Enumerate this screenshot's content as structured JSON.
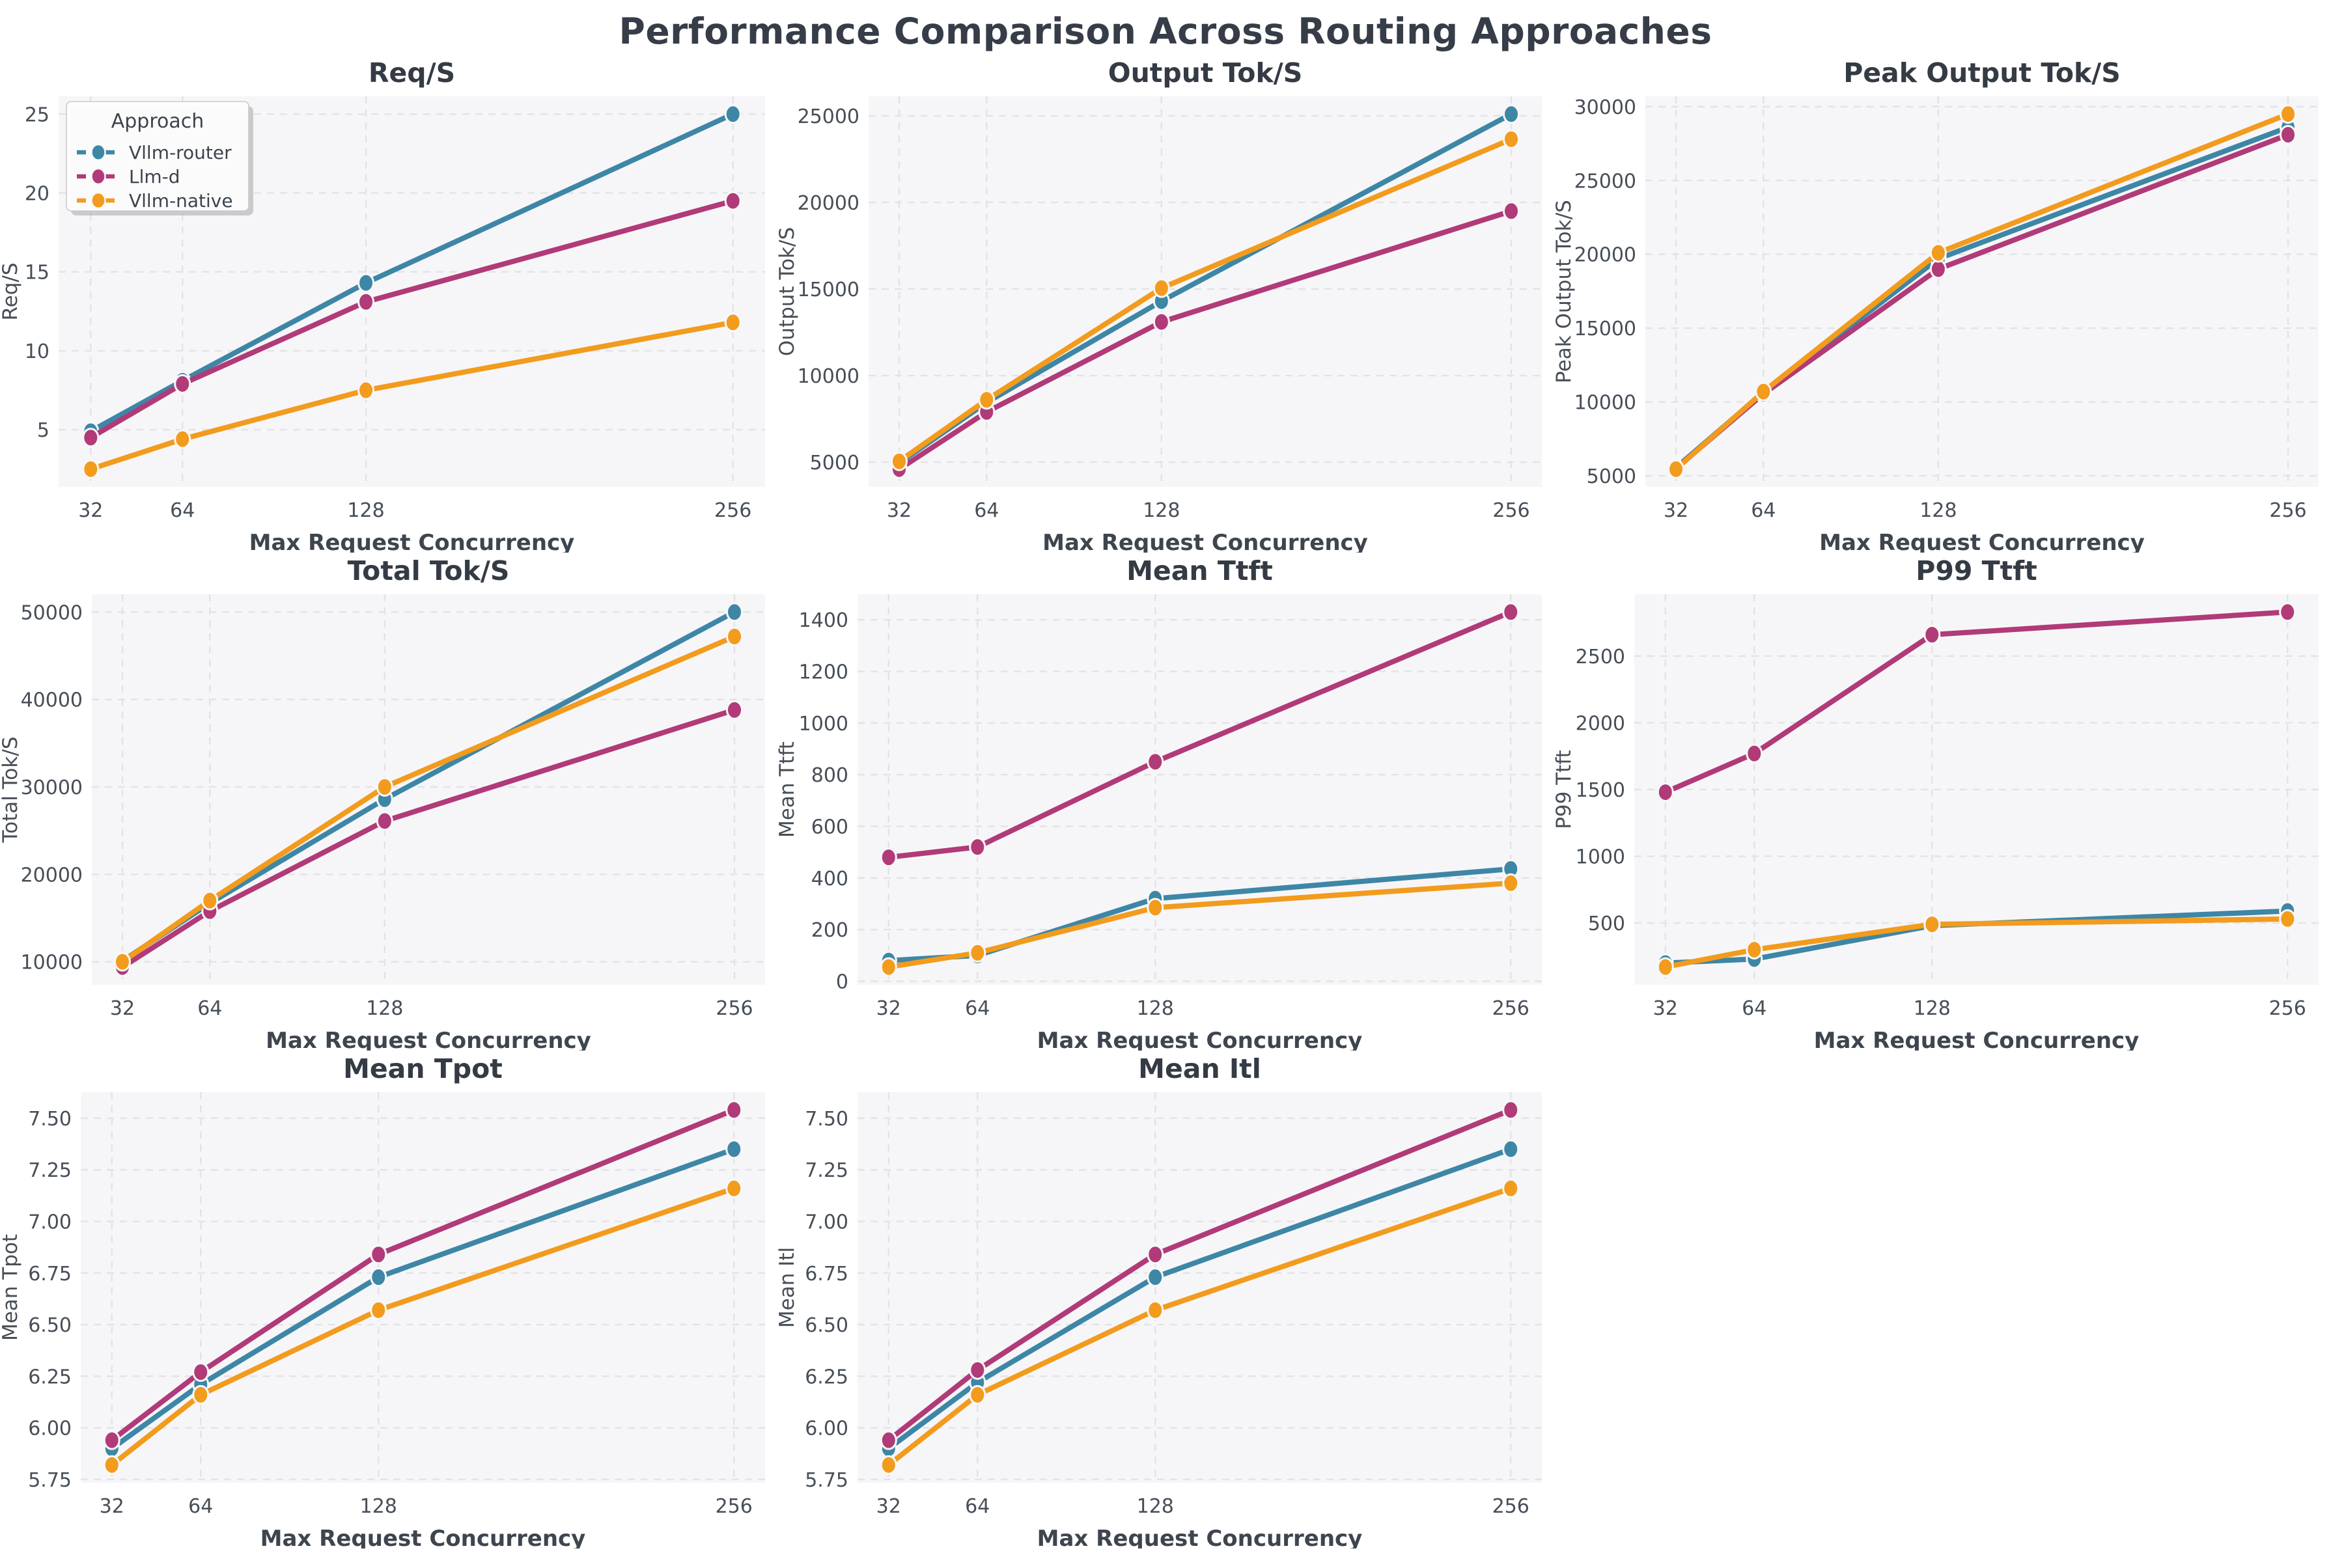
{
  "title": "Performance Comparison Across Routing Approaches",
  "x_axis_label": "Max Request Concurrency",
  "x_tick_labels": [
    "32",
    "64",
    "128",
    "256"
  ],
  "legend": {
    "title": "Approach",
    "entries": [
      {
        "label": "Vllm-router",
        "color": "#3e86a6"
      },
      {
        "label": "Llm-d",
        "color": "#b13a78"
      },
      {
        "label": "Vllm-native",
        "color": "#f29b1d"
      }
    ]
  },
  "colors": {
    "figure_background": "#ffffff",
    "plot_background": "#f6f6f8",
    "gridline": "#e3e3e7",
    "marker_edge": "#f7f7f8",
    "title_text": "#343b45",
    "tick_text": "#474e57"
  },
  "chart_data": [
    {
      "type": "line",
      "title": "Req/S",
      "xlabel": "Max Request Concurrency",
      "ylabel": "Req/S",
      "x": [
        32,
        64,
        128,
        256
      ],
      "xlim": [
        20.8,
        267.2
      ],
      "ylim": [
        1.375,
        26.125
      ],
      "yticks": [
        5,
        10,
        15,
        20,
        25
      ],
      "ytick_labels": [
        "5",
        "10",
        "15",
        "20",
        "25"
      ],
      "grid": true,
      "show_legend": true,
      "series": [
        {
          "name": "Vllm-router",
          "color": "#3e86a6",
          "values": [
            4.9,
            8.1,
            14.3,
            25.0
          ]
        },
        {
          "name": "Llm-d",
          "color": "#b13a78",
          "values": [
            4.5,
            7.9,
            13.1,
            19.5
          ]
        },
        {
          "name": "Vllm-native",
          "color": "#f29b1d",
          "values": [
            2.5,
            4.4,
            7.5,
            11.8
          ]
        }
      ]
    },
    {
      "type": "line",
      "title": "Output Tok/S",
      "xlabel": "Max Request Concurrency",
      "ylabel": "Output Tok/S",
      "x": [
        32,
        64,
        128,
        256
      ],
      "xlim": [
        20.8,
        267.2
      ],
      "ylim": [
        3575,
        26125
      ],
      "yticks": [
        5000,
        10000,
        15000,
        20000,
        25000
      ],
      "ytick_labels": [
        "5000",
        "10000",
        "15000",
        "20000",
        "25000"
      ],
      "grid": true,
      "show_legend": false,
      "series": [
        {
          "name": "Vllm-router",
          "color": "#3e86a6",
          "values": [
            4950,
            8450,
            14300,
            25100
          ]
        },
        {
          "name": "Llm-d",
          "color": "#b13a78",
          "values": [
            4600,
            7900,
            13100,
            19500
          ]
        },
        {
          "name": "Vllm-native",
          "color": "#f29b1d",
          "values": [
            5050,
            8600,
            15050,
            23650
          ]
        }
      ]
    },
    {
      "type": "line",
      "title": "Peak Output Tok/S",
      "xlabel": "Max Request Concurrency",
      "ylabel": "Peak Output Tok/S",
      "x": [
        32,
        64,
        128,
        256
      ],
      "xlim": [
        20.8,
        267.2
      ],
      "ylim": [
        4250,
        30700
      ],
      "yticks": [
        5000,
        10000,
        15000,
        20000,
        25000,
        30000
      ],
      "ytick_labels": [
        "5000",
        "10000",
        "15000",
        "20000",
        "25000",
        "30000"
      ],
      "grid": true,
      "show_legend": false,
      "series": [
        {
          "name": "Vllm-router",
          "color": "#3e86a6",
          "values": [
            5550,
            10650,
            19700,
            28600
          ]
        },
        {
          "name": "Llm-d",
          "color": "#b13a78",
          "values": [
            5500,
            10550,
            19000,
            28100
          ]
        },
        {
          "name": "Vllm-native",
          "color": "#f29b1d",
          "values": [
            5450,
            10700,
            20100,
            29500
          ]
        }
      ]
    },
    {
      "type": "line",
      "title": "Total Tok/S",
      "xlabel": "Max Request Concurrency",
      "ylabel": "Total Tok/S",
      "x": [
        32,
        64,
        128,
        256
      ],
      "xlim": [
        20.8,
        267.2
      ],
      "ylim": [
        7370,
        52030
      ],
      "yticks": [
        10000,
        20000,
        30000,
        40000,
        50000
      ],
      "ytick_labels": [
        "10000",
        "20000",
        "30000",
        "40000",
        "50000"
      ],
      "grid": true,
      "show_legend": false,
      "series": [
        {
          "name": "Vllm-router",
          "color": "#3e86a6",
          "values": [
            10100,
            16700,
            28600,
            50000
          ]
        },
        {
          "name": "Llm-d",
          "color": "#b13a78",
          "values": [
            9400,
            15800,
            26100,
            38800
          ]
        },
        {
          "name": "Vllm-native",
          "color": "#f29b1d",
          "values": [
            10000,
            17000,
            30000,
            47200
          ]
        }
      ]
    },
    {
      "type": "line",
      "title": "Mean Ttft",
      "xlabel": "Max Request Concurrency",
      "ylabel": "Mean Ttft",
      "x": [
        32,
        64,
        128,
        256
      ],
      "xlim": [
        20.8,
        267.2
      ],
      "ylim": [
        -13.75,
        1498.75
      ],
      "yticks": [
        0,
        200,
        400,
        600,
        800,
        1000,
        1200,
        1400
      ],
      "ytick_labels": [
        "0",
        "200",
        "400",
        "600",
        "800",
        "1000",
        "1200",
        "1400"
      ],
      "grid": true,
      "show_legend": false,
      "series": [
        {
          "name": "Vllm-router",
          "color": "#3e86a6",
          "values": [
            80,
            100,
            320,
            435
          ]
        },
        {
          "name": "Llm-d",
          "color": "#b13a78",
          "values": [
            480,
            520,
            850,
            1430
          ]
        },
        {
          "name": "Vllm-native",
          "color": "#f29b1d",
          "values": [
            55,
            110,
            285,
            380
          ]
        }
      ]
    },
    {
      "type": "line",
      "title": "P99 Ttft",
      "xlabel": "Max Request Concurrency",
      "ylabel": "P99 Ttft",
      "x": [
        32,
        64,
        128,
        256
      ],
      "xlim": [
        20.8,
        267.2
      ],
      "ylim": [
        37,
        2963
      ],
      "yticks": [
        500,
        1000,
        1500,
        2000,
        2500
      ],
      "ytick_labels": [
        "500",
        "1000",
        "1500",
        "2000",
        "2500"
      ],
      "grid": true,
      "show_legend": false,
      "series": [
        {
          "name": "Vllm-router",
          "color": "#3e86a6",
          "values": [
            200,
            230,
            480,
            590
          ]
        },
        {
          "name": "Llm-d",
          "color": "#b13a78",
          "values": [
            1480,
            1770,
            2660,
            2830
          ]
        },
        {
          "name": "Vllm-native",
          "color": "#f29b1d",
          "values": [
            170,
            300,
            490,
            530
          ]
        }
      ]
    },
    {
      "type": "line",
      "title": "Mean Tpot",
      "xlabel": "Max Request Concurrency",
      "ylabel": "Mean Tpot",
      "x": [
        32,
        64,
        128,
        256
      ],
      "xlim": [
        20.8,
        267.2
      ],
      "ylim": [
        5.734,
        7.626
      ],
      "yticks": [
        5.75,
        6.0,
        6.25,
        6.5,
        6.75,
        7.0,
        7.25,
        7.5
      ],
      "ytick_labels": [
        "5.75",
        "6.00",
        "6.25",
        "6.50",
        "6.75",
        "7.00",
        "7.25",
        "7.50"
      ],
      "grid": true,
      "show_legend": false,
      "series": [
        {
          "name": "Vllm-router",
          "color": "#3e86a6",
          "values": [
            5.9,
            6.21,
            6.73,
            7.35
          ]
        },
        {
          "name": "Llm-d",
          "color": "#b13a78",
          "values": [
            5.94,
            6.27,
            6.84,
            7.54
          ]
        },
        {
          "name": "Vllm-native",
          "color": "#f29b1d",
          "values": [
            5.82,
            6.16,
            6.57,
            7.16
          ]
        }
      ]
    },
    {
      "type": "line",
      "title": "Mean Itl",
      "xlabel": "Max Request Concurrency",
      "ylabel": "Mean Itl",
      "x": [
        32,
        64,
        128,
        256
      ],
      "xlim": [
        20.8,
        267.2
      ],
      "ylim": [
        5.734,
        7.626
      ],
      "yticks": [
        5.75,
        6.0,
        6.25,
        6.5,
        6.75,
        7.0,
        7.25,
        7.5
      ],
      "ytick_labels": [
        "5.75",
        "6.00",
        "6.25",
        "6.50",
        "6.75",
        "7.00",
        "7.25",
        "7.50"
      ],
      "grid": true,
      "show_legend": false,
      "series": [
        {
          "name": "Vllm-router",
          "color": "#3e86a6",
          "values": [
            5.9,
            6.22,
            6.73,
            7.35
          ]
        },
        {
          "name": "Llm-d",
          "color": "#b13a78",
          "values": [
            5.94,
            6.28,
            6.84,
            7.54
          ]
        },
        {
          "name": "Vllm-native",
          "color": "#f29b1d",
          "values": [
            5.82,
            6.16,
            6.57,
            7.16
          ]
        }
      ]
    }
  ]
}
